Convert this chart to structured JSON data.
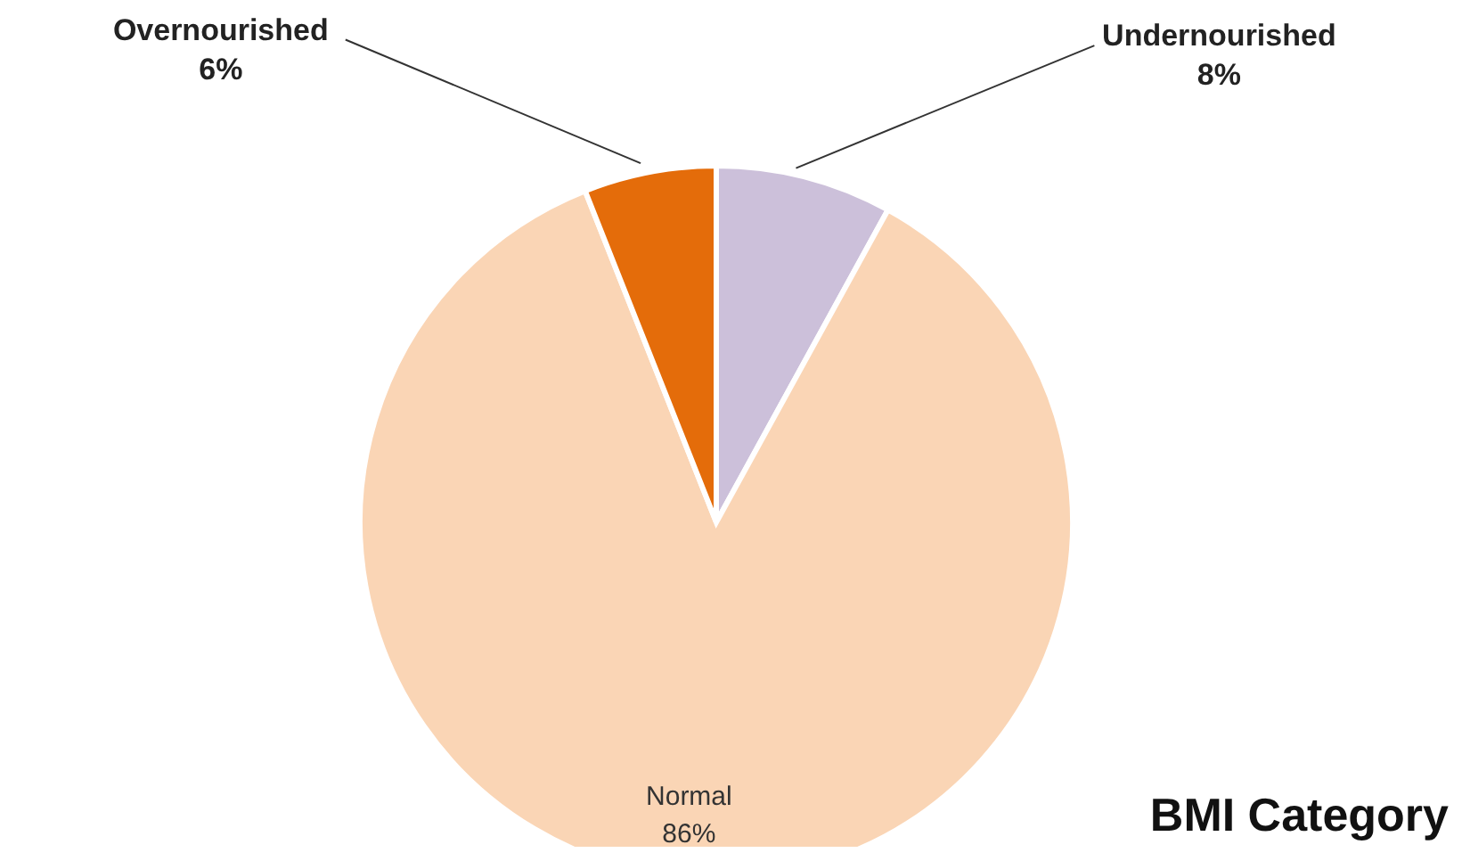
{
  "chart_data": {
    "type": "pie",
    "title": "BMI Category",
    "categories": [
      "Undernourished",
      "Normal",
      "Overnourished"
    ],
    "values": [
      8,
      86,
      6
    ],
    "colors": [
      "#ccc0da",
      "#fad5b5",
      "#e46c0a"
    ],
    "value_labels": [
      "8%",
      "86%",
      "6%"
    ]
  }
}
